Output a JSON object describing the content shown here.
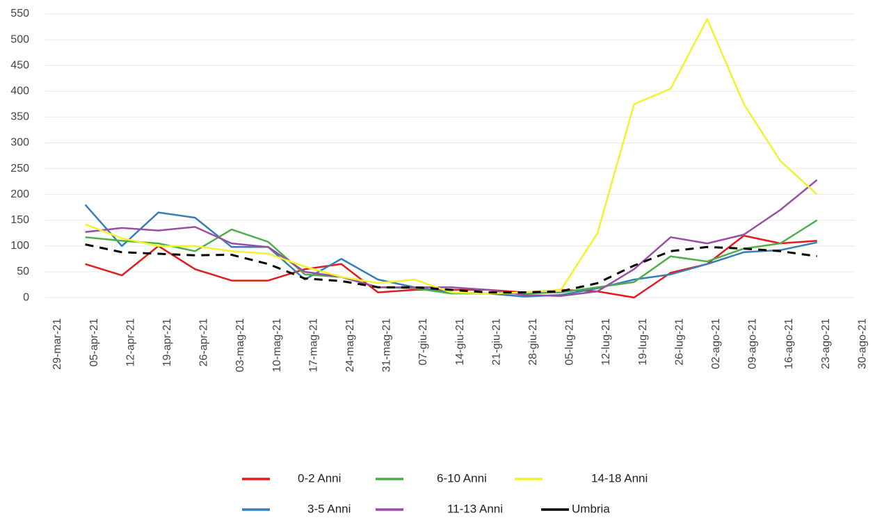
{
  "chart_data": {
    "type": "line",
    "categories": [
      "29-mar-21",
      "05-apr-21",
      "12-apr-21",
      "19-apr-21",
      "26-apr-21",
      "03-mag-21",
      "10-mag-21",
      "17-mag-21",
      "24-mag-21",
      "31-mag-21",
      "07-giu-21",
      "14-giu-21",
      "21-giu-21",
      "28-giu-21",
      "05-lug-21",
      "12-lug-21",
      "19-lug-21",
      "26-lug-21",
      "02-ago-21",
      "09-ago-21",
      "16-ago-21",
      "23-ago-21",
      "30-ago-21"
    ],
    "series": [
      {
        "name": "0-2 Anni",
        "color": "#e41a1c",
        "values": [
          null,
          65,
          43,
          100,
          55,
          33,
          33,
          55,
          65,
          10,
          15,
          15,
          15,
          10,
          15,
          12,
          0,
          48,
          65,
          120,
          105,
          110,
          null
        ]
      },
      {
        "name": "3-5 Anni",
        "color": "#377eb8",
        "values": [
          null,
          180,
          100,
          165,
          155,
          98,
          98,
          35,
          75,
          35,
          20,
          10,
          8,
          2,
          5,
          18,
          35,
          45,
          65,
          88,
          92,
          107,
          null
        ]
      },
      {
        "name": "6-10 Anni",
        "color": "#4daf4a",
        "values": [
          null,
          117,
          110,
          105,
          90,
          132,
          108,
          45,
          40,
          20,
          18,
          8,
          8,
          8,
          10,
          20,
          30,
          80,
          70,
          95,
          105,
          150,
          null
        ]
      },
      {
        "name": "11-13 Anni",
        "color": "#984ea3",
        "values": [
          null,
          127,
          135,
          130,
          137,
          105,
          98,
          50,
          40,
          20,
          20,
          20,
          15,
          5,
          3,
          12,
          55,
          117,
          105,
          122,
          170,
          228,
          null
        ]
      },
      {
        "name": "14-18 Anni",
        "color": "#f2f22e",
        "values": [
          null,
          142,
          115,
          100,
          100,
          90,
          85,
          60,
          40,
          28,
          35,
          10,
          8,
          10,
          15,
          125,
          375,
          405,
          540,
          375,
          265,
          200,
          null
        ]
      },
      {
        "name": "Umbria",
        "color": "#000000",
        "dashed": true,
        "values": [
          null,
          103,
          88,
          85,
          82,
          83,
          65,
          37,
          32,
          20,
          20,
          15,
          10,
          10,
          12,
          28,
          62,
          90,
          98,
          95,
          90,
          80,
          null
        ]
      }
    ],
    "ylim": [
      -30,
      560
    ],
    "yticks": [
      0,
      50,
      100,
      150,
      200,
      250,
      300,
      350,
      400,
      450,
      500,
      550
    ],
    "grid": true
  }
}
